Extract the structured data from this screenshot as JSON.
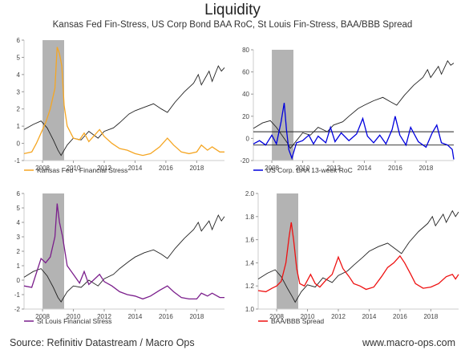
{
  "header": {
    "title": "Liquidity",
    "subtitle": "Kansas Fed Fin-Stress, US Corp Bond BAA RoC, St Louis Fin-Stress, BAA/BBB Spread"
  },
  "footer": {
    "source": "Source: Refinitiv Datastream / Macro Ops",
    "website": "www.macro-ops.com"
  },
  "colors": {
    "index_line": "#222222",
    "kansas": "#f5a623",
    "baa_roc": "#0000dd",
    "stlouis": "#7b1f8c",
    "spread": "#ee1111",
    "recession_shade": "#b3b3b3",
    "axis": "#cccccc"
  },
  "chart_data": [
    {
      "type": "line",
      "legend": "Kansas Fed - Financial Stress",
      "x_ticks": [
        "2008",
        "2010",
        "2012",
        "2014",
        "2016",
        "2018"
      ],
      "y_ticks": [
        "-1",
        "0",
        "1",
        "2",
        "3",
        "4",
        "5",
        "6"
      ],
      "ylim": [
        -1,
        6
      ],
      "xlim": [
        2006.8,
        2019.8
      ],
      "shaded_region": [
        2008.0,
        2009.4
      ],
      "series_points": [
        [
          2006.8,
          -0.6
        ],
        [
          2007.3,
          -0.5
        ],
        [
          2007.6,
          0.0
        ],
        [
          2007.9,
          0.6
        ],
        [
          2008.2,
          1.2
        ],
        [
          2008.5,
          2.0
        ],
        [
          2008.8,
          3.2
        ],
        [
          2008.95,
          5.6
        ],
        [
          2009.1,
          5.2
        ],
        [
          2009.25,
          4.5
        ],
        [
          2009.4,
          2.2
        ],
        [
          2009.6,
          1.0
        ],
        [
          2010.0,
          0.3
        ],
        [
          2010.4,
          0.2
        ],
        [
          2010.7,
          0.6
        ],
        [
          2011.0,
          0.1
        ],
        [
          2011.7,
          0.8
        ],
        [
          2012.0,
          0.4
        ],
        [
          2012.5,
          0.0
        ],
        [
          2013.0,
          -0.3
        ],
        [
          2013.5,
          -0.4
        ],
        [
          2014.0,
          -0.6
        ],
        [
          2014.5,
          -0.7
        ],
        [
          2015.0,
          -0.6
        ],
        [
          2015.6,
          -0.2
        ],
        [
          2016.1,
          0.3
        ],
        [
          2016.5,
          -0.1
        ],
        [
          2017.0,
          -0.5
        ],
        [
          2017.5,
          -0.6
        ],
        [
          2018.0,
          -0.5
        ],
        [
          2018.3,
          -0.1
        ],
        [
          2018.7,
          -0.4
        ],
        [
          2019.0,
          -0.2
        ],
        [
          2019.5,
          -0.5
        ],
        [
          2019.8,
          -0.5
        ]
      ],
      "index_points": [
        [
          2006.8,
          0.8
        ],
        [
          2007.4,
          1.1
        ],
        [
          2007.9,
          1.3
        ],
        [
          2008.3,
          0.9
        ],
        [
          2008.7,
          0.2
        ],
        [
          2009.0,
          -0.4
        ],
        [
          2009.2,
          -0.7
        ],
        [
          2009.6,
          -0.1
        ],
        [
          2010.0,
          0.3
        ],
        [
          2010.5,
          0.2
        ],
        [
          2011.0,
          0.7
        ],
        [
          2011.6,
          0.3
        ],
        [
          2012.0,
          0.7
        ],
        [
          2012.6,
          0.9
        ],
        [
          2013.0,
          1.2
        ],
        [
          2013.6,
          1.7
        ],
        [
          2014.0,
          1.9
        ],
        [
          2014.6,
          2.1
        ],
        [
          2015.2,
          2.3
        ],
        [
          2015.7,
          2.0
        ],
        [
          2016.1,
          1.8
        ],
        [
          2016.6,
          2.4
        ],
        [
          2017.2,
          3.0
        ],
        [
          2017.8,
          3.5
        ],
        [
          2018.1,
          4.0
        ],
        [
          2018.3,
          3.4
        ],
        [
          2018.8,
          4.2
        ],
        [
          2019.0,
          3.6
        ],
        [
          2019.4,
          4.5
        ],
        [
          2019.6,
          4.2
        ],
        [
          2019.8,
          4.4
        ]
      ]
    },
    {
      "type": "line",
      "legend": "US Corp. BAA 13-week RoC",
      "x_ticks": [
        "2008",
        "2010",
        "2012",
        "2014",
        "2016",
        "2018"
      ],
      "y_ticks": [
        "-20",
        "0",
        "20",
        "40",
        "60",
        "80"
      ],
      "ylim": [
        -20,
        80
      ],
      "xlim": [
        2006.8,
        2019.8
      ],
      "shaded_region": [
        2008.0,
        2009.4
      ],
      "reference_lines": [
        -6,
        6
      ],
      "series_points": [
        [
          2006.8,
          -5
        ],
        [
          2007.2,
          -2
        ],
        [
          2007.6,
          -6
        ],
        [
          2008.0,
          3
        ],
        [
          2008.3,
          -5
        ],
        [
          2008.6,
          15
        ],
        [
          2008.8,
          32
        ],
        [
          2008.95,
          8
        ],
        [
          2009.1,
          -10
        ],
        [
          2009.3,
          -18
        ],
        [
          2009.6,
          -4
        ],
        [
          2010.0,
          -2
        ],
        [
          2010.4,
          3
        ],
        [
          2010.7,
          -5
        ],
        [
          2011.0,
          2
        ],
        [
          2011.5,
          -4
        ],
        [
          2011.8,
          10
        ],
        [
          2012.1,
          -3
        ],
        [
          2012.5,
          5
        ],
        [
          2013.0,
          -2
        ],
        [
          2013.5,
          4
        ],
        [
          2013.9,
          18
        ],
        [
          2014.2,
          2
        ],
        [
          2014.6,
          -4
        ],
        [
          2015.0,
          3
        ],
        [
          2015.4,
          -5
        ],
        [
          2015.8,
          8
        ],
        [
          2016.0,
          20
        ],
        [
          2016.3,
          3
        ],
        [
          2016.7,
          -6
        ],
        [
          2017.0,
          10
        ],
        [
          2017.5,
          -3
        ],
        [
          2018.0,
          -8
        ],
        [
          2018.4,
          5
        ],
        [
          2018.7,
          12
        ],
        [
          2019.0,
          -4
        ],
        [
          2019.4,
          -6
        ],
        [
          2019.7,
          -10
        ],
        [
          2019.8,
          -19
        ]
      ],
      "index_points": [
        [
          2006.8,
          9
        ],
        [
          2007.4,
          14
        ],
        [
          2007.9,
          16
        ],
        [
          2008.3,
          10
        ],
        [
          2008.7,
          2
        ],
        [
          2009.0,
          -4
        ],
        [
          2009.2,
          -9
        ],
        [
          2009.6,
          -2
        ],
        [
          2010.0,
          5
        ],
        [
          2010.5,
          3
        ],
        [
          2011.0,
          10
        ],
        [
          2011.6,
          6
        ],
        [
          2012.0,
          12
        ],
        [
          2012.6,
          15
        ],
        [
          2013.0,
          20
        ],
        [
          2013.6,
          27
        ],
        [
          2014.0,
          30
        ],
        [
          2014.6,
          34
        ],
        [
          2015.2,
          37
        ],
        [
          2015.7,
          33
        ],
        [
          2016.1,
          30
        ],
        [
          2016.6,
          39
        ],
        [
          2017.2,
          48
        ],
        [
          2017.8,
          55
        ],
        [
          2018.1,
          62
        ],
        [
          2018.3,
          55
        ],
        [
          2018.8,
          65
        ],
        [
          2019.0,
          58
        ],
        [
          2019.4,
          70
        ],
        [
          2019.6,
          66
        ],
        [
          2019.8,
          68
        ]
      ]
    },
    {
      "type": "line",
      "legend": "St Louis Financial Stress",
      "x_ticks": [
        "2008",
        "2010",
        "2012",
        "2014",
        "2016",
        "2018"
      ],
      "y_ticks": [
        "-2",
        "-1",
        "0",
        "1",
        "2",
        "3",
        "4",
        "5",
        "6"
      ],
      "ylim": [
        -2,
        6
      ],
      "xlim": [
        2006.8,
        2019.8
      ],
      "shaded_region": [
        2008.0,
        2009.4
      ],
      "series_points": [
        [
          2006.8,
          -0.4
        ],
        [
          2007.3,
          -0.5
        ],
        [
          2007.6,
          0.5
        ],
        [
          2007.9,
          1.5
        ],
        [
          2008.2,
          1.2
        ],
        [
          2008.5,
          1.6
        ],
        [
          2008.8,
          3.0
        ],
        [
          2008.95,
          5.3
        ],
        [
          2009.1,
          4.0
        ],
        [
          2009.3,
          3.0
        ],
        [
          2009.6,
          1.0
        ],
        [
          2010.0,
          0.4
        ],
        [
          2010.4,
          -0.2
        ],
        [
          2010.7,
          0.6
        ],
        [
          2011.0,
          -0.3
        ],
        [
          2011.7,
          0.4
        ],
        [
          2012.0,
          -0.1
        ],
        [
          2012.5,
          -0.4
        ],
        [
          2013.0,
          -0.8
        ],
        [
          2013.5,
          -1.0
        ],
        [
          2014.0,
          -1.1
        ],
        [
          2014.5,
          -1.3
        ],
        [
          2015.0,
          -1.1
        ],
        [
          2015.6,
          -0.7
        ],
        [
          2016.1,
          -0.4
        ],
        [
          2016.5,
          -0.8
        ],
        [
          2017.0,
          -1.2
        ],
        [
          2017.5,
          -1.3
        ],
        [
          2018.0,
          -1.3
        ],
        [
          2018.3,
          -0.9
        ],
        [
          2018.7,
          -1.1
        ],
        [
          2019.0,
          -0.9
        ],
        [
          2019.5,
          -1.2
        ],
        [
          2019.8,
          -1.2
        ]
      ],
      "index_points": [
        [
          2006.8,
          0.2
        ],
        [
          2007.4,
          0.6
        ],
        [
          2007.9,
          0.8
        ],
        [
          2008.3,
          0.3
        ],
        [
          2008.7,
          -0.5
        ],
        [
          2009.0,
          -1.2
        ],
        [
          2009.2,
          -1.5
        ],
        [
          2009.6,
          -0.8
        ],
        [
          2010.0,
          -0.4
        ],
        [
          2010.5,
          -0.5
        ],
        [
          2011.0,
          0.0
        ],
        [
          2011.6,
          -0.4
        ],
        [
          2012.0,
          0.1
        ],
        [
          2012.6,
          0.4
        ],
        [
          2013.0,
          0.8
        ],
        [
          2013.6,
          1.3
        ],
        [
          2014.0,
          1.6
        ],
        [
          2014.6,
          1.9
        ],
        [
          2015.2,
          2.1
        ],
        [
          2015.7,
          1.8
        ],
        [
          2016.1,
          1.5
        ],
        [
          2016.6,
          2.2
        ],
        [
          2017.2,
          2.9
        ],
        [
          2017.8,
          3.5
        ],
        [
          2018.1,
          4.0
        ],
        [
          2018.3,
          3.4
        ],
        [
          2018.8,
          4.1
        ],
        [
          2019.0,
          3.5
        ],
        [
          2019.4,
          4.5
        ],
        [
          2019.6,
          4.1
        ],
        [
          2019.8,
          4.4
        ]
      ]
    },
    {
      "type": "line",
      "legend": "BAA/BBB Spread",
      "x_ticks": [
        "2008",
        "2010",
        "2012",
        "2014",
        "2016",
        "2018"
      ],
      "y_ticks": [
        "1.0",
        "1.2",
        "1.4",
        "1.6",
        "1.8",
        "2.0"
      ],
      "ylim": [
        1.0,
        2.0
      ],
      "xlim": [
        2006.8,
        2019.8
      ],
      "shaded_region": [
        2008.0,
        2009.4
      ],
      "series_points": [
        [
          2006.8,
          1.16
        ],
        [
          2007.3,
          1.15
        ],
        [
          2007.7,
          1.18
        ],
        [
          2008.0,
          1.2
        ],
        [
          2008.3,
          1.24
        ],
        [
          2008.6,
          1.4
        ],
        [
          2008.8,
          1.62
        ],
        [
          2008.95,
          1.75
        ],
        [
          2009.1,
          1.6
        ],
        [
          2009.3,
          1.35
        ],
        [
          2009.5,
          1.22
        ],
        [
          2009.8,
          1.2
        ],
        [
          2010.2,
          1.3
        ],
        [
          2010.5,
          1.22
        ],
        [
          2010.8,
          1.19
        ],
        [
          2011.2,
          1.25
        ],
        [
          2011.6,
          1.3
        ],
        [
          2012.0,
          1.45
        ],
        [
          2012.3,
          1.35
        ],
        [
          2012.7,
          1.28
        ],
        [
          2013.0,
          1.22
        ],
        [
          2013.4,
          1.2
        ],
        [
          2013.8,
          1.17
        ],
        [
          2014.3,
          1.19
        ],
        [
          2014.8,
          1.28
        ],
        [
          2015.2,
          1.36
        ],
        [
          2015.6,
          1.4
        ],
        [
          2016.0,
          1.46
        ],
        [
          2016.3,
          1.4
        ],
        [
          2016.7,
          1.3
        ],
        [
          2017.0,
          1.22
        ],
        [
          2017.5,
          1.18
        ],
        [
          2018.0,
          1.19
        ],
        [
          2018.5,
          1.22
        ],
        [
          2019.0,
          1.28
        ],
        [
          2019.4,
          1.3
        ],
        [
          2019.6,
          1.26
        ],
        [
          2019.8,
          1.3
        ]
      ],
      "index_points": [
        [
          2006.8,
          1.26
        ],
        [
          2007.4,
          1.31
        ],
        [
          2007.9,
          1.34
        ],
        [
          2008.3,
          1.28
        ],
        [
          2008.7,
          1.18
        ],
        [
          2009.0,
          1.11
        ],
        [
          2009.2,
          1.06
        ],
        [
          2009.6,
          1.15
        ],
        [
          2010.0,
          1.21
        ],
        [
          2010.5,
          1.19
        ],
        [
          2011.0,
          1.27
        ],
        [
          2011.6,
          1.23
        ],
        [
          2012.0,
          1.29
        ],
        [
          2012.6,
          1.33
        ],
        [
          2013.0,
          1.38
        ],
        [
          2013.6,
          1.45
        ],
        [
          2014.0,
          1.5
        ],
        [
          2014.6,
          1.54
        ],
        [
          2015.2,
          1.57
        ],
        [
          2015.7,
          1.52
        ],
        [
          2016.1,
          1.48
        ],
        [
          2016.6,
          1.58
        ],
        [
          2017.2,
          1.67
        ],
        [
          2017.8,
          1.74
        ],
        [
          2018.1,
          1.8
        ],
        [
          2018.3,
          1.72
        ],
        [
          2018.8,
          1.82
        ],
        [
          2019.0,
          1.75
        ],
        [
          2019.4,
          1.85
        ],
        [
          2019.6,
          1.8
        ],
        [
          2019.8,
          1.84
        ]
      ]
    }
  ]
}
